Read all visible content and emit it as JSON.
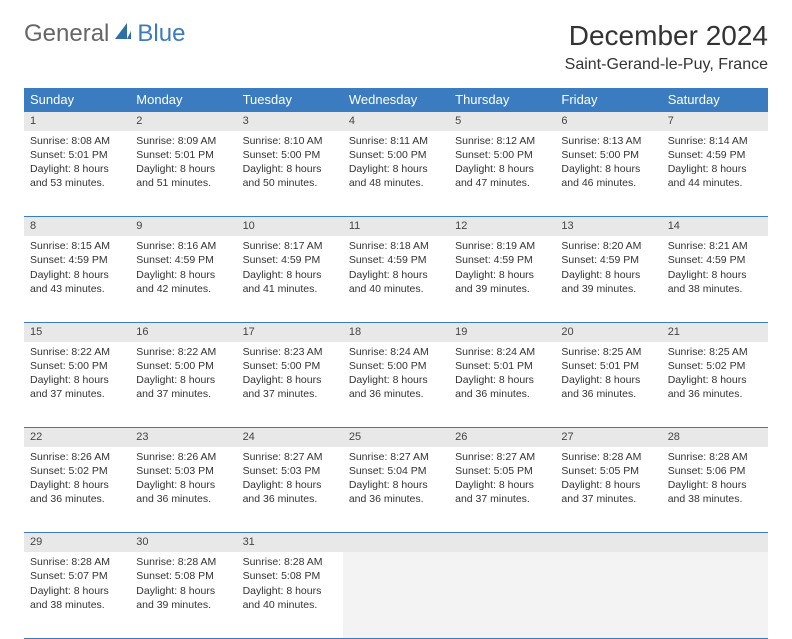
{
  "logo": {
    "text1": "General",
    "text2": "Blue"
  },
  "title": "December 2024",
  "location": "Saint-Gerand-le-Puy, France",
  "colors": {
    "header_bg": "#3b7bbf",
    "header_fg": "#ffffff",
    "daynum_bg": "#e8e8e8",
    "border": "#3b7bbf",
    "text": "#333333",
    "empty_bg": "#f3f3f3"
  },
  "weekdays": [
    "Sunday",
    "Monday",
    "Tuesday",
    "Wednesday",
    "Thursday",
    "Friday",
    "Saturday"
  ],
  "weeks": [
    [
      {
        "n": "1",
        "sr": "Sunrise: 8:08 AM",
        "ss": "Sunset: 5:01 PM",
        "d1": "Daylight: 8 hours",
        "d2": "and 53 minutes."
      },
      {
        "n": "2",
        "sr": "Sunrise: 8:09 AM",
        "ss": "Sunset: 5:01 PM",
        "d1": "Daylight: 8 hours",
        "d2": "and 51 minutes."
      },
      {
        "n": "3",
        "sr": "Sunrise: 8:10 AM",
        "ss": "Sunset: 5:00 PM",
        "d1": "Daylight: 8 hours",
        "d2": "and 50 minutes."
      },
      {
        "n": "4",
        "sr": "Sunrise: 8:11 AM",
        "ss": "Sunset: 5:00 PM",
        "d1": "Daylight: 8 hours",
        "d2": "and 48 minutes."
      },
      {
        "n": "5",
        "sr": "Sunrise: 8:12 AM",
        "ss": "Sunset: 5:00 PM",
        "d1": "Daylight: 8 hours",
        "d2": "and 47 minutes."
      },
      {
        "n": "6",
        "sr": "Sunrise: 8:13 AM",
        "ss": "Sunset: 5:00 PM",
        "d1": "Daylight: 8 hours",
        "d2": "and 46 minutes."
      },
      {
        "n": "7",
        "sr": "Sunrise: 8:14 AM",
        "ss": "Sunset: 4:59 PM",
        "d1": "Daylight: 8 hours",
        "d2": "and 44 minutes."
      }
    ],
    [
      {
        "n": "8",
        "sr": "Sunrise: 8:15 AM",
        "ss": "Sunset: 4:59 PM",
        "d1": "Daylight: 8 hours",
        "d2": "and 43 minutes."
      },
      {
        "n": "9",
        "sr": "Sunrise: 8:16 AM",
        "ss": "Sunset: 4:59 PM",
        "d1": "Daylight: 8 hours",
        "d2": "and 42 minutes."
      },
      {
        "n": "10",
        "sr": "Sunrise: 8:17 AM",
        "ss": "Sunset: 4:59 PM",
        "d1": "Daylight: 8 hours",
        "d2": "and 41 minutes."
      },
      {
        "n": "11",
        "sr": "Sunrise: 8:18 AM",
        "ss": "Sunset: 4:59 PM",
        "d1": "Daylight: 8 hours",
        "d2": "and 40 minutes."
      },
      {
        "n": "12",
        "sr": "Sunrise: 8:19 AM",
        "ss": "Sunset: 4:59 PM",
        "d1": "Daylight: 8 hours",
        "d2": "and 39 minutes."
      },
      {
        "n": "13",
        "sr": "Sunrise: 8:20 AM",
        "ss": "Sunset: 4:59 PM",
        "d1": "Daylight: 8 hours",
        "d2": "and 39 minutes."
      },
      {
        "n": "14",
        "sr": "Sunrise: 8:21 AM",
        "ss": "Sunset: 4:59 PM",
        "d1": "Daylight: 8 hours",
        "d2": "and 38 minutes."
      }
    ],
    [
      {
        "n": "15",
        "sr": "Sunrise: 8:22 AM",
        "ss": "Sunset: 5:00 PM",
        "d1": "Daylight: 8 hours",
        "d2": "and 37 minutes."
      },
      {
        "n": "16",
        "sr": "Sunrise: 8:22 AM",
        "ss": "Sunset: 5:00 PM",
        "d1": "Daylight: 8 hours",
        "d2": "and 37 minutes."
      },
      {
        "n": "17",
        "sr": "Sunrise: 8:23 AM",
        "ss": "Sunset: 5:00 PM",
        "d1": "Daylight: 8 hours",
        "d2": "and 37 minutes."
      },
      {
        "n": "18",
        "sr": "Sunrise: 8:24 AM",
        "ss": "Sunset: 5:00 PM",
        "d1": "Daylight: 8 hours",
        "d2": "and 36 minutes."
      },
      {
        "n": "19",
        "sr": "Sunrise: 8:24 AM",
        "ss": "Sunset: 5:01 PM",
        "d1": "Daylight: 8 hours",
        "d2": "and 36 minutes."
      },
      {
        "n": "20",
        "sr": "Sunrise: 8:25 AM",
        "ss": "Sunset: 5:01 PM",
        "d1": "Daylight: 8 hours",
        "d2": "and 36 minutes."
      },
      {
        "n": "21",
        "sr": "Sunrise: 8:25 AM",
        "ss": "Sunset: 5:02 PM",
        "d1": "Daylight: 8 hours",
        "d2": "and 36 minutes."
      }
    ],
    [
      {
        "n": "22",
        "sr": "Sunrise: 8:26 AM",
        "ss": "Sunset: 5:02 PM",
        "d1": "Daylight: 8 hours",
        "d2": "and 36 minutes."
      },
      {
        "n": "23",
        "sr": "Sunrise: 8:26 AM",
        "ss": "Sunset: 5:03 PM",
        "d1": "Daylight: 8 hours",
        "d2": "and 36 minutes."
      },
      {
        "n": "24",
        "sr": "Sunrise: 8:27 AM",
        "ss": "Sunset: 5:03 PM",
        "d1": "Daylight: 8 hours",
        "d2": "and 36 minutes."
      },
      {
        "n": "25",
        "sr": "Sunrise: 8:27 AM",
        "ss": "Sunset: 5:04 PM",
        "d1": "Daylight: 8 hours",
        "d2": "and 36 minutes."
      },
      {
        "n": "26",
        "sr": "Sunrise: 8:27 AM",
        "ss": "Sunset: 5:05 PM",
        "d1": "Daylight: 8 hours",
        "d2": "and 37 minutes."
      },
      {
        "n": "27",
        "sr": "Sunrise: 8:28 AM",
        "ss": "Sunset: 5:05 PM",
        "d1": "Daylight: 8 hours",
        "d2": "and 37 minutes."
      },
      {
        "n": "28",
        "sr": "Sunrise: 8:28 AM",
        "ss": "Sunset: 5:06 PM",
        "d1": "Daylight: 8 hours",
        "d2": "and 38 minutes."
      }
    ],
    [
      {
        "n": "29",
        "sr": "Sunrise: 8:28 AM",
        "ss": "Sunset: 5:07 PM",
        "d1": "Daylight: 8 hours",
        "d2": "and 38 minutes."
      },
      {
        "n": "30",
        "sr": "Sunrise: 8:28 AM",
        "ss": "Sunset: 5:08 PM",
        "d1": "Daylight: 8 hours",
        "d2": "and 39 minutes."
      },
      {
        "n": "31",
        "sr": "Sunrise: 8:28 AM",
        "ss": "Sunset: 5:08 PM",
        "d1": "Daylight: 8 hours",
        "d2": "and 40 minutes."
      },
      null,
      null,
      null,
      null
    ]
  ]
}
